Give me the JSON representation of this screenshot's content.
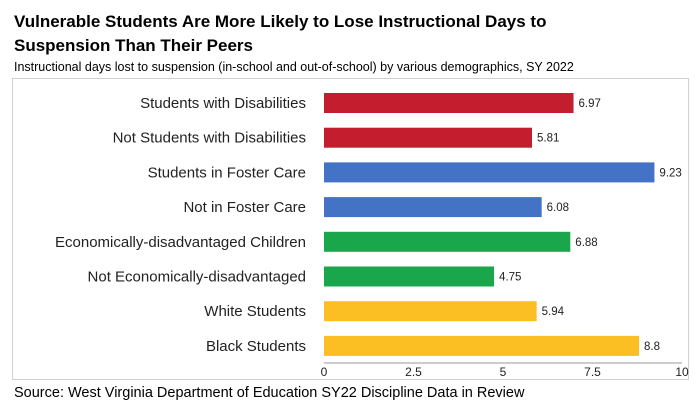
{
  "chart_data": {
    "type": "bar",
    "orientation": "horizontal",
    "title": "Vulnerable Students Are More Likely to Lose Instructional Days to Suspension Than Their Peers",
    "subtitle": "Instructional days lost to suspension (in-school and out-of-school) by various demographics, SY 2022",
    "categories": [
      "Students with Disabilities",
      "Not Students with Disabilities",
      "Students in Foster Care",
      "Not in Foster Care",
      "Economically-disadvantaged Children",
      "Not Economically-disadvantaged",
      "White Students",
      "Black Students"
    ],
    "values": [
      6.97,
      5.81,
      9.23,
      6.08,
      6.88,
      4.75,
      5.94,
      8.8
    ],
    "value_labels": [
      "6.97",
      "5.81",
      "9.23",
      "6.08",
      "6.88",
      "4.75",
      "5.94",
      "8.8"
    ],
    "colors": [
      "#c41e2e",
      "#c41e2e",
      "#4472c4",
      "#4472c4",
      "#1aa64a",
      "#1aa64a",
      "#fbbf24",
      "#fbbf24"
    ],
    "xlim": [
      0,
      10
    ],
    "xticks": [
      0,
      2.5,
      5,
      7.5,
      10
    ],
    "xtick_labels": [
      "0",
      "2.5",
      "5",
      "7.5",
      "10"
    ],
    "xlabel": "",
    "ylabel": "",
    "grid": false,
    "legend": "none"
  },
  "source": "Source: West Virginia Department of Education SY22 Discipline Data in Review"
}
